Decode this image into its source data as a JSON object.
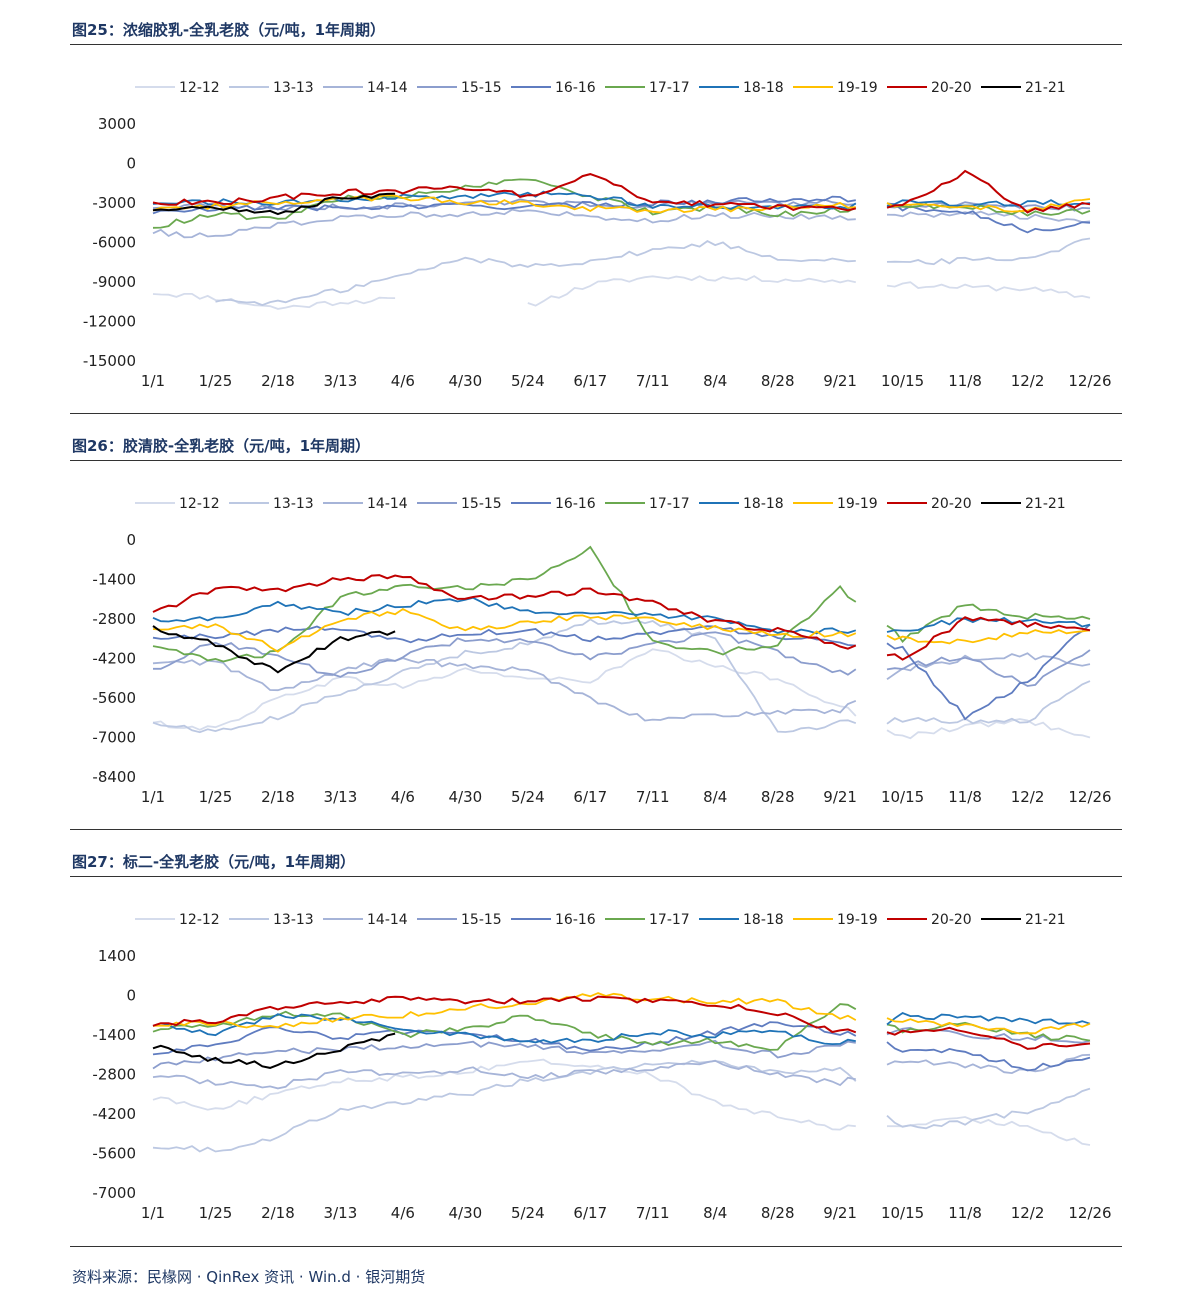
{
  "source_text": "资料来源：民椽网 · QinRex 资讯 · Win.d · 银河期货",
  "legend_series": [
    {
      "name": "12-12",
      "color": "#d5dcec"
    },
    {
      "name": "13-13",
      "color": "#bcc8e2"
    },
    {
      "name": "14-14",
      "color": "#a6b4d8"
    },
    {
      "name": "15-15",
      "color": "#8b9dcd"
    },
    {
      "name": "16-16",
      "color": "#5f7cc0"
    },
    {
      "name": "17-17",
      "color": "#6aa84f"
    },
    {
      "name": "18-18",
      "color": "#1f73b7"
    },
    {
      "name": "19-19",
      "color": "#ffc000"
    },
    {
      "name": "20-20",
      "color": "#c00000"
    },
    {
      "name": "21-21",
      "color": "#000000"
    }
  ],
  "x_ticks": [
    "1/1",
    "1/25",
    "2/18",
    "3/13",
    "4/6",
    "4/30",
    "5/24",
    "6/17",
    "7/11",
    "8/4",
    "8/28",
    "9/21",
    "10/15",
    "11/8",
    "12/2",
    "12/26"
  ],
  "chart_data": [
    {
      "type": "line",
      "title": "图25：浓缩胶乳-全乳老胶（元/吨，1年周期）",
      "x": [
        "1/1",
        "1/25",
        "2/18",
        "3/13",
        "4/6",
        "4/30",
        "5/24",
        "6/17",
        "7/11",
        "8/4",
        "8/28",
        "9/21",
        "10/15",
        "11/8",
        "12/2",
        "12/26"
      ],
      "ylim": [
        -15000,
        3000
      ],
      "yticks": [
        3000,
        0,
        -3000,
        -6000,
        -9000,
        -12000,
        -15000
      ],
      "grid": false,
      "legend_position": "top",
      "series": [
        {
          "name": "12-12",
          "values": [
            -9800,
            -10200,
            -11000,
            -10500,
            -10300,
            null,
            -10800,
            -9200,
            -8600,
            -8700,
            -8800,
            -8900,
            -9200,
            -9400,
            -9500,
            -10200
          ]
        },
        {
          "name": "13-13",
          "values": [
            null,
            -10400,
            -10600,
            -9600,
            -8500,
            -7200,
            -7800,
            -7400,
            -6600,
            -6000,
            -7200,
            -7300,
            -7600,
            -7300,
            -7200,
            -5700
          ]
        },
        {
          "name": "14-14",
          "values": [
            -5200,
            -5600,
            -4600,
            -4200,
            -3900,
            -3800,
            -3600,
            -4000,
            -4300,
            -3900,
            -4000,
            -4100,
            -3900,
            -3800,
            -4000,
            -4400
          ]
        },
        {
          "name": "15-15",
          "values": [
            -3300,
            -3200,
            -3400,
            -3300,
            -3200,
            -3000,
            -2900,
            -3100,
            -3200,
            -3000,
            -3100,
            -2900,
            -3300,
            -3100,
            -3300,
            -3400
          ]
        },
        {
          "name": "16-16",
          "values": [
            -3700,
            -3500,
            -3300,
            -3400,
            -3300,
            -3200,
            -3300,
            -3100,
            -3000,
            -2900,
            -2700,
            -2600,
            -3400,
            -3600,
            -5200,
            -4500
          ]
        },
        {
          "name": "17-17",
          "values": [
            -4800,
            -3800,
            -4300,
            -2600,
            -2500,
            -1800,
            -1300,
            -2500,
            -3700,
            -3300,
            -3900,
            -3500,
            -3300,
            -3200,
            -3800,
            -3600
          ]
        },
        {
          "name": "18-18",
          "values": [
            -3000,
            -2900,
            -3000,
            -2800,
            -2500,
            -2600,
            -2300,
            -2400,
            -3200,
            -3300,
            -3400,
            -3300,
            -3000,
            -3100,
            -3000,
            -3000
          ]
        },
        {
          "name": "19-19",
          "values": [
            -3500,
            -3200,
            -2900,
            -2700,
            -2600,
            -2900,
            -3000,
            -3400,
            -3500,
            -3500,
            -3300,
            -3200,
            -3100,
            -3200,
            -3600,
            -2700
          ]
        },
        {
          "name": "20-20",
          "values": [
            -2900,
            -3000,
            -2600,
            -2200,
            -2100,
            -1800,
            -2500,
            -900,
            -2800,
            -3100,
            -3300,
            -3400,
            -3300,
            -600,
            -3600,
            -3100
          ]
        },
        {
          "name": "21-21",
          "values": [
            -3500,
            -3400,
            -3800,
            -2600,
            -2200,
            null,
            null,
            null,
            null,
            null,
            null,
            null,
            null,
            null,
            null,
            null
          ]
        }
      ]
    },
    {
      "type": "line",
      "title": "图26：胶清胶-全乳老胶（元/吨，1年周期）",
      "x": [
        "1/1",
        "1/25",
        "2/18",
        "3/13",
        "4/6",
        "4/30",
        "5/24",
        "6/17",
        "7/11",
        "8/4",
        "8/28",
        "9/21",
        "10/15",
        "11/8",
        "12/2",
        "12/26"
      ],
      "ylim": [
        -8400,
        0
      ],
      "yticks": [
        0,
        -1400,
        -2800,
        -4200,
        -5600,
        -7000,
        -8400
      ],
      "grid": false,
      "legend_position": "top",
      "series": [
        {
          "name": "12-12",
          "values": [
            -6500,
            -6700,
            -5600,
            -4900,
            -5200,
            -4600,
            -4900,
            -5000,
            -3900,
            -4500,
            -4900,
            -5900,
            -7000,
            -6600,
            -6400,
            -7000
          ]
        },
        {
          "name": "13-13",
          "values": [
            -6500,
            -6800,
            -6300,
            -5400,
            -4700,
            -4000,
            -3700,
            -2900,
            -2900,
            -3500,
            -6800,
            -6500,
            -6400,
            -6400,
            -6400,
            -5000
          ]
        },
        {
          "name": "14-14",
          "values": [
            -4400,
            -4300,
            -5400,
            -4600,
            -4200,
            -4500,
            -4600,
            -5600,
            -6400,
            -6200,
            -6100,
            -6100,
            -4600,
            -4200,
            -4100,
            -4400
          ]
        },
        {
          "name": "15-15",
          "values": [
            -4600,
            -3600,
            -4100,
            -4900,
            -4100,
            -3500,
            -3600,
            -4200,
            -3700,
            -3300,
            -4000,
            -4700,
            -4500,
            -4100,
            -5200,
            -3900
          ]
        },
        {
          "name": "16-16",
          "values": [
            -3500,
            -3400,
            -3200,
            -3100,
            -3600,
            -3300,
            -3200,
            -3500,
            -3300,
            -3100,
            -3400,
            -3600,
            -3800,
            -6300,
            -5000,
            -3000
          ]
        },
        {
          "name": "17-17",
          "values": [
            -3800,
            -4300,
            -4000,
            -2000,
            -1600,
            -1700,
            -1400,
            -300,
            -3600,
            -4000,
            -3700,
            -1700,
            -3500,
            -2300,
            -2700,
            -2800
          ]
        },
        {
          "name": "18-18",
          "values": [
            -2800,
            -2800,
            -2200,
            -2600,
            -2300,
            -2100,
            -2500,
            -2600,
            -2700,
            -2800,
            -3300,
            -3200,
            -3200,
            -2800,
            -2900,
            -3000
          ]
        },
        {
          "name": "19-19",
          "values": [
            -3200,
            -3000,
            -3900,
            -2800,
            -2500,
            -3200,
            -2900,
            -2700,
            -2800,
            -3100,
            -3400,
            -3300,
            -3500,
            -3600,
            -3300,
            -3200
          ]
        },
        {
          "name": "20-20",
          "values": [
            -2600,
            -1700,
            -1800,
            -1400,
            -1300,
            -2100,
            -2000,
            -1800,
            -2200,
            -2900,
            -3200,
            -3700,
            -4200,
            -2800,
            -3000,
            -3200
          ]
        },
        {
          "name": "21-21",
          "values": [
            -3100,
            -3700,
            -4700,
            -3500,
            -3200,
            null,
            null,
            null,
            null,
            null,
            null,
            null,
            null,
            null,
            null,
            null
          ]
        }
      ]
    },
    {
      "type": "line",
      "title": "图27：标二-全乳老胶（元/吨，1年周期）",
      "x": [
        "1/1",
        "1/25",
        "2/18",
        "3/13",
        "4/6",
        "4/30",
        "5/24",
        "6/17",
        "7/11",
        "8/4",
        "8/28",
        "9/21",
        "10/15",
        "11/8",
        "12/2",
        "12/26"
      ],
      "ylim": [
        -7000,
        1400
      ],
      "yticks": [
        1400,
        0,
        -1400,
        -2800,
        -4200,
        -5600,
        -7000
      ],
      "grid": false,
      "legend_position": "top",
      "series": [
        {
          "name": "12-12",
          "values": [
            -3600,
            -4000,
            -3500,
            -3000,
            -2900,
            -2700,
            -2300,
            -2500,
            -2800,
            -3800,
            -4300,
            -4700,
            -4600,
            -4400,
            -4600,
            -5300
          ]
        },
        {
          "name": "13-13",
          "values": [
            -5300,
            -5500,
            -5000,
            -4000,
            -3800,
            -3500,
            -3000,
            -2700,
            -2400,
            -2400,
            -2700,
            -2600,
            -4700,
            -4500,
            -4100,
            -3300
          ]
        },
        {
          "name": "14-14",
          "values": [
            -2800,
            -3100,
            -3200,
            -2700,
            -2800,
            -2600,
            -2900,
            -2700,
            -2600,
            -2400,
            -2800,
            -3100,
            -2300,
            -2500,
            -2700,
            -2100
          ]
        },
        {
          "name": "15-15",
          "values": [
            -2500,
            -2200,
            -2000,
            -1900,
            -1800,
            -1700,
            -1800,
            -2000,
            -1900,
            -1700,
            -2100,
            -1800,
            -1200,
            -1400,
            -1500,
            -1600
          ]
        },
        {
          "name": "16-16",
          "values": [
            -2000,
            -1800,
            -1100,
            -1500,
            -1300,
            -1400,
            -1600,
            -1900,
            -1700,
            -1300,
            -900,
            -1300,
            -1900,
            -2000,
            -2600,
            -2200
          ]
        },
        {
          "name": "17-17",
          "values": [
            -1200,
            -1100,
            -600,
            -700,
            -1400,
            -1200,
            -700,
            -1400,
            -1700,
            -1600,
            -1900,
            -300,
            -1300,
            -1000,
            -1400,
            -1600
          ]
        },
        {
          "name": "18-18",
          "values": [
            -1000,
            -1400,
            -700,
            -800,
            -1200,
            -1400,
            -1600,
            -1600,
            -1300,
            -1400,
            -1300,
            -1800,
            -700,
            -800,
            -900,
            -1000
          ]
        },
        {
          "name": "19-19",
          "values": [
            -1000,
            -1000,
            -1100,
            -800,
            -700,
            -400,
            -300,
            0,
            -100,
            -200,
            -200,
            -800,
            -900,
            -1100,
            -1300,
            -1000
          ]
        },
        {
          "name": "20-20",
          "values": [
            -1000,
            -900,
            -400,
            -300,
            -100,
            -200,
            -200,
            -100,
            -200,
            -300,
            -600,
            -1300,
            -1300,
            -1200,
            -1800,
            -1700
          ]
        },
        {
          "name": "21-21",
          "values": [
            -1800,
            -2300,
            -2500,
            -1900,
            -1300,
            null,
            null,
            null,
            null,
            null,
            null,
            null,
            null,
            null,
            null,
            null
          ]
        }
      ]
    }
  ]
}
